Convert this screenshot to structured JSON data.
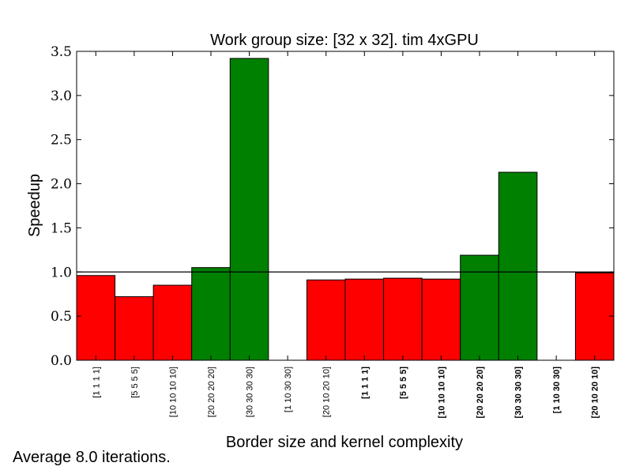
{
  "chart_data": {
    "type": "bar",
    "title": "Work group size: [32 x 32]. tim 4xGPU",
    "xlabel": "Border size and kernel complexity",
    "ylabel": "Speedup",
    "ylim": [
      0,
      3.5
    ],
    "yticks": [
      "0.0",
      "0.5",
      "1.0",
      "1.5",
      "2.0",
      "2.5",
      "3.0",
      "3.5"
    ],
    "reference_line": 1.0,
    "grid": false,
    "categories": [
      "[1 1 1 1]",
      "[5 5 5 5]",
      "[10 10 10 10]",
      "[20 20 20 20]",
      "[30 30 30 30]",
      "[1 10 30 30]",
      "[20 10 20 10]",
      "[1 1 1 1]",
      "[5 5 5 5]",
      "[10 10 10 10]",
      "[20 20 20 20]",
      "[30 30 30 30]",
      "[1 10 30 30]",
      "[20 10 20 10]"
    ],
    "bold_labels": [
      false,
      false,
      false,
      false,
      false,
      false,
      false,
      true,
      true,
      true,
      true,
      true,
      true,
      true
    ],
    "values": [
      0.96,
      0.72,
      0.85,
      1.05,
      3.42,
      0.0,
      0.91,
      0.92,
      0.93,
      0.92,
      1.19,
      2.13,
      0.0,
      0.99
    ],
    "colors": {
      "faster": "#008000",
      "slower": "#ff0000"
    }
  },
  "footer": "Average 8.0 iterations."
}
